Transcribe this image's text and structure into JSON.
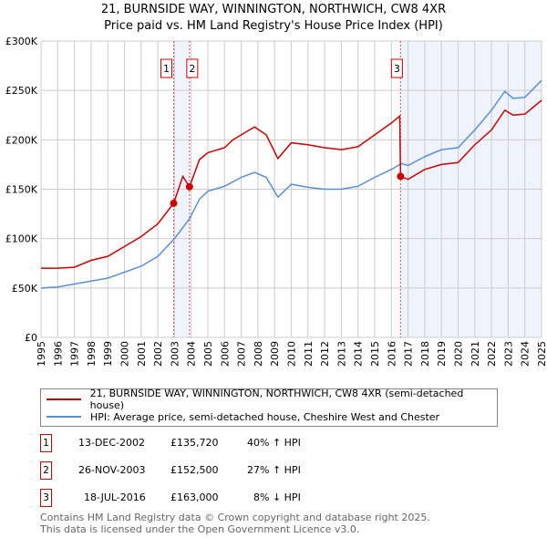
{
  "chart_data": {
    "type": "line",
    "title": "21, BURNSIDE WAY, WINNINGTON, NORTHWICH, CW8 4XR",
    "subtitle": "Price paid vs. HM Land Registry's House Price Index (HPI)",
    "xlim": [
      1995,
      2025
    ],
    "ylim": [
      0,
      300000
    ],
    "yticks": [
      {
        "v": 0,
        "l": "£0"
      },
      {
        "v": 50000,
        "l": "£50K"
      },
      {
        "v": 100000,
        "l": "£100K"
      },
      {
        "v": 150000,
        "l": "£150K"
      },
      {
        "v": 200000,
        "l": "£200K"
      },
      {
        "v": 250000,
        "l": "£250K"
      },
      {
        "v": 300000,
        "l": "£300K"
      }
    ],
    "xticks": [
      "1995",
      "1996",
      "1997",
      "1998",
      "1999",
      "2000",
      "2001",
      "2002",
      "2003",
      "2004",
      "2005",
      "2006",
      "2007",
      "2008",
      "2009",
      "2010",
      "2011",
      "2012",
      "2013",
      "2014",
      "2015",
      "2016",
      "2017",
      "2018",
      "2019",
      "2020",
      "2021",
      "2022",
      "2023",
      "2024",
      "2025"
    ],
    "grid": true,
    "series": [
      {
        "name": "21, BURNSIDE WAY, WINNINGTON, NORTHWICH, CW8 4XR (semi-detached house)",
        "color": "#cc0000",
        "x": [
          1995,
          1996,
          1997,
          1998,
          1999,
          2000,
          2001,
          2002,
          2002.95,
          2003.5,
          2003.9,
          2004.5,
          2005,
          2006,
          2006.5,
          2007,
          2007.8,
          2008.5,
          2009.2,
          2010,
          2011,
          2012,
          2013,
          2014,
          2015,
          2016,
          2016.5,
          2016.55,
          2017,
          2018,
          2019,
          2020,
          2021,
          2022,
          2022.8,
          2023.3,
          2024,
          2025
        ],
        "y": [
          70,
          70,
          71,
          78,
          82,
          92,
          102,
          115,
          135.7,
          163,
          152.5,
          180,
          187,
          192,
          200,
          205,
          213,
          205,
          181,
          197,
          195,
          192,
          190,
          193,
          205,
          217,
          224,
          163,
          160,
          170,
          175,
          177,
          195,
          210,
          230,
          225,
          226,
          240
        ]
      },
      {
        "name": "HPI: Average price, semi-detached house, Cheshire West and Chester",
        "color": "#5b8fd4",
        "x": [
          1995,
          1996,
          1997,
          1998,
          1999,
          2000,
          2001,
          2002,
          2003,
          2003.9,
          2004.5,
          2005,
          2006,
          2007,
          2007.8,
          2008.5,
          2009.2,
          2010,
          2011,
          2012,
          2013,
          2014,
          2015,
          2016,
          2016.6,
          2017,
          2018,
          2019,
          2020,
          2021,
          2022,
          2022.8,
          2023.3,
          2024,
          2025
        ],
        "y": [
          50,
          51,
          54,
          57,
          60,
          66,
          72,
          82,
          100,
          120,
          140,
          148,
          153,
          162,
          167,
          162,
          142,
          155,
          152,
          150,
          150,
          153,
          162,
          170,
          176,
          174,
          183,
          190,
          192,
          210,
          230,
          249,
          242,
          243,
          260
        ]
      }
    ],
    "y_units": "thousands GBP",
    "sales": [
      {
        "n": "1",
        "x": 2002.95,
        "y": 135.72,
        "date": "13-DEC-2002",
        "price": "£135,720",
        "hpi": "40% ↑ HPI"
      },
      {
        "n": "2",
        "x": 2003.9,
        "y": 152.5,
        "date": "26-NOV-2003",
        "price": "£152,500",
        "hpi": "27% ↑ HPI"
      },
      {
        "n": "3",
        "x": 2016.55,
        "y": 163,
        "date": "18-JUL-2016",
        "price": "£163,000",
        "hpi": "8% ↓ HPI"
      }
    ],
    "legend_position": "below"
  },
  "footer": [
    "Contains HM Land Registry data © Crown copyright and database right 2025.",
    "This data is licensed under the Open Government Licence v3.0."
  ]
}
